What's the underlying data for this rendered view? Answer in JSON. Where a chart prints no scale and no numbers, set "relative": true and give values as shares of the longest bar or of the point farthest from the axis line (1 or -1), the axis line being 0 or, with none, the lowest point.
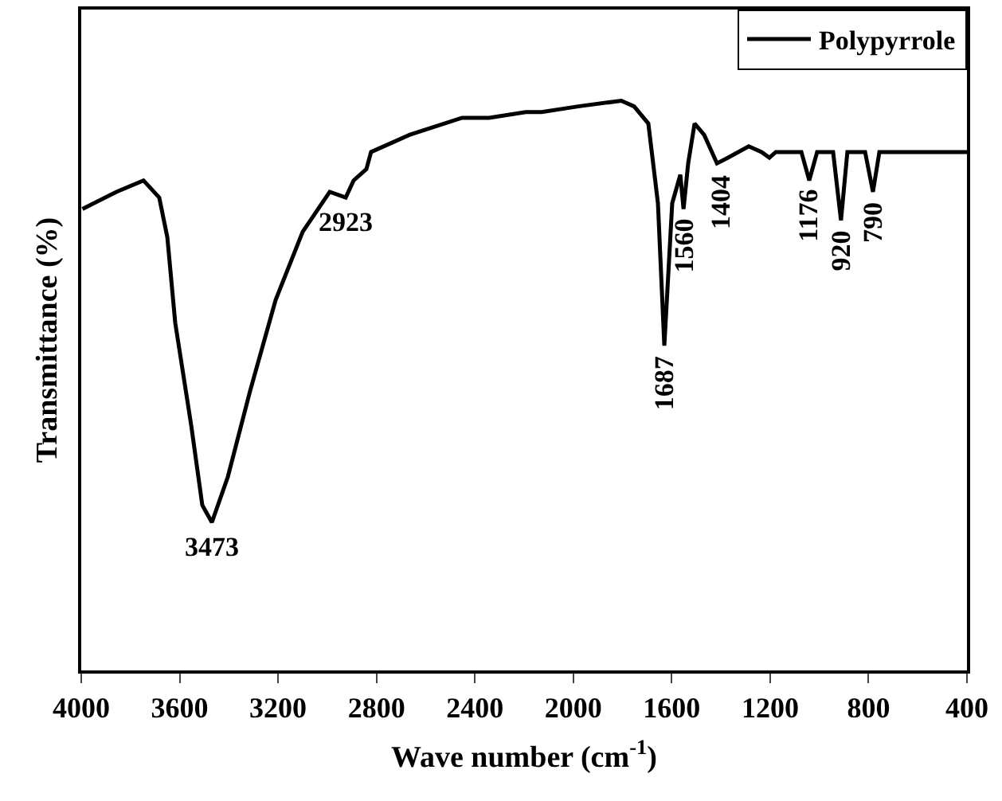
{
  "chart_data": {
    "type": "line",
    "relative": true,
    "xlabel": "Wave number (cm$^{-1}$)",
    "ylabel": "Transmittance (%)",
    "xlim": [
      4000,
      400
    ],
    "xticks": [
      4000,
      3600,
      3200,
      2800,
      2400,
      2000,
      1600,
      1200,
      800,
      400
    ],
    "legend": "top right",
    "marker": "none",
    "line_style": "solid",
    "series": [
      {
        "name": "Polypyrrole",
        "color": "#000000",
        "x": [
          3995,
          3857,
          3747,
          3683,
          3650,
          3618,
          3553,
          3508,
          3469,
          3404,
          3314,
          3210,
          3100,
          2990,
          2925,
          2893,
          2841,
          2822,
          2666,
          2452,
          2342,
          2193,
          2129,
          1980,
          1805,
          1753,
          1695,
          1656,
          1630,
          1598,
          1565,
          1552,
          1533,
          1507,
          1468,
          1416,
          1371,
          1287,
          1235,
          1203,
          1177,
          1073,
          1041,
          1009,
          944,
          912,
          886,
          814,
          782,
          756,
          400
        ],
        "values": [
          0.81,
          0.84,
          0.86,
          0.83,
          0.76,
          0.61,
          0.43,
          0.29,
          0.26,
          0.34,
          0.49,
          0.65,
          0.77,
          0.84,
          0.83,
          0.86,
          0.88,
          0.91,
          0.94,
          0.97,
          0.97,
          0.98,
          0.98,
          0.99,
          1.0,
          0.99,
          0.96,
          0.82,
          0.57,
          0.82,
          0.87,
          0.81,
          0.89,
          0.96,
          0.94,
          0.89,
          0.9,
          0.92,
          0.91,
          0.9,
          0.91,
          0.91,
          0.86,
          0.91,
          0.91,
          0.79,
          0.91,
          0.91,
          0.84,
          0.91,
          0.91
        ]
      }
    ],
    "annotations": [
      {
        "text": "3473",
        "x": 3469,
        "y": 0.26
      },
      {
        "text": "2923",
        "x": 2925,
        "y": 0.83
      },
      {
        "text": "1687",
        "x": 1630,
        "y": 0.57
      },
      {
        "text": "1560",
        "x": 1552,
        "y": 0.81
      },
      {
        "text": "1404",
        "x": 1404,
        "y": 0.89
      },
      {
        "text": "1176",
        "x": 1041,
        "y": 0.86
      },
      {
        "text": "920",
        "x": 912,
        "y": 0.79
      },
      {
        "text": "790",
        "x": 782,
        "y": 0.84
      }
    ]
  }
}
